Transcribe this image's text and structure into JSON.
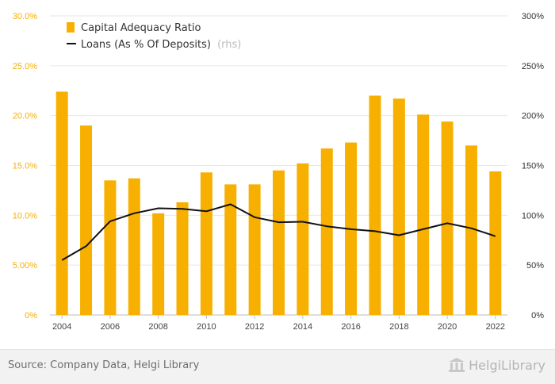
{
  "chart_data": {
    "type": "bar",
    "categories": [
      "2004",
      "2005",
      "2006",
      "2007",
      "2008",
      "2009",
      "2010",
      "2011",
      "2012",
      "2013",
      "2014",
      "2015",
      "2016",
      "2017",
      "2018",
      "2019",
      "2020",
      "2021",
      "2022"
    ],
    "x_tick_labels": [
      "2004",
      "2006",
      "2008",
      "2010",
      "2012",
      "2014",
      "2016",
      "2018",
      "2020",
      "2022"
    ],
    "series": [
      {
        "name": "Capital Adequacy Ratio",
        "type": "bar",
        "axis": "left",
        "color": "#f7b000",
        "values": [
          22.4,
          19.0,
          13.5,
          13.7,
          10.2,
          11.3,
          14.3,
          13.1,
          13.1,
          14.5,
          15.2,
          16.7,
          17.3,
          22.0,
          21.7,
          20.1,
          19.4,
          17.0,
          14.4
        ]
      },
      {
        "name": "Loans (As % Of Deposits)",
        "name_suffix": "(rhs)",
        "type": "line",
        "axis": "right",
        "color": "#111111",
        "values": [
          55,
          69,
          94,
          102,
          107,
          106.5,
          104,
          111,
          98,
          93,
          93.5,
          89,
          86,
          84,
          80,
          86,
          92,
          87,
          79
        ]
      }
    ],
    "y_left": {
      "min": 0,
      "max": 30,
      "ticks": [
        "0%",
        "5.00%",
        "10.0%",
        "15.0%",
        "20.0%",
        "25.0%",
        "30.0%"
      ],
      "tick_color": "#f7b000"
    },
    "y_right": {
      "min": 0,
      "max": 300,
      "ticks": [
        "0%",
        "50%",
        "100%",
        "150%",
        "200%",
        "250%",
        "300%"
      ]
    },
    "grid": true,
    "legend_position": "top-left"
  },
  "footer": {
    "source": "Source: Company Data, Helgi Library",
    "brand": "HelgiLibrary"
  }
}
